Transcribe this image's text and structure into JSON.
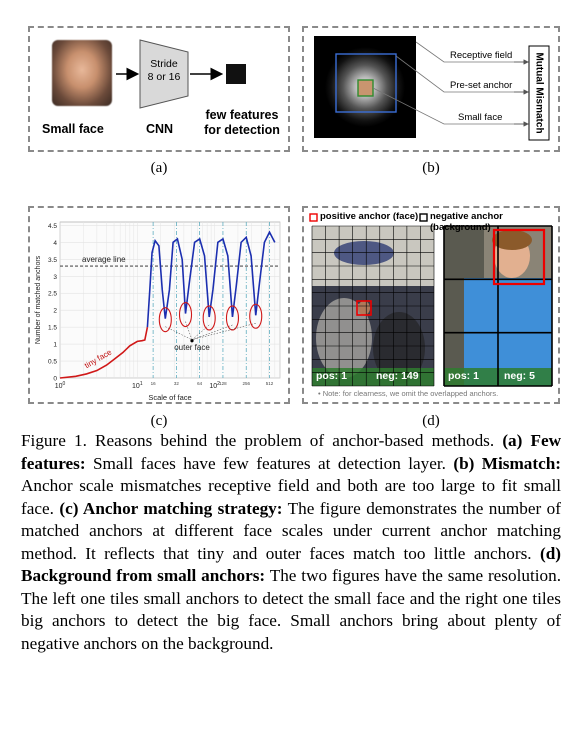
{
  "panel_a": {
    "small_face_label": "Small face",
    "stride_line1": "Stride",
    "stride_line2": "8 or 16",
    "cnn_label": "CNN",
    "few_features_line1": "few features",
    "few_features_line2": "for detection",
    "sublabel": "(a)"
  },
  "panel_b": {
    "receptive_field": "Receptive field",
    "preset_anchor": "Pre-set anchor",
    "small_face": "Small face",
    "mutual_mismatch": "Mutual Mismatch",
    "sublabel": "(b)"
  },
  "panel_c": {
    "sublabel": "(c)",
    "average_line_label": "average line",
    "tiny_face_label": "tiny face",
    "outer_face_label": "outer face",
    "chart_data": {
      "type": "line",
      "xlabel": "Scale of face",
      "ylabel": "Number of matched anchors",
      "x_scale": "log",
      "xlim": [
        1,
        700
      ],
      "ylim": [
        0,
        4.6
      ],
      "major_x_ticks": [
        "10^0",
        "10^1",
        "10^2"
      ],
      "minor_x_ticks": [
        "16",
        "32",
        "64",
        "128",
        "256",
        "512"
      ],
      "y_ticks": [
        "0",
        "0.5",
        "1",
        "1.5",
        "2",
        "2.5",
        "3",
        "3.5",
        "4",
        "4.5"
      ],
      "average_line": 3.3,
      "grid": true,
      "series": [
        {
          "values_y": [
            0,
            0.05,
            0.12,
            0.22,
            0.38,
            0.55,
            0.75,
            0.95,
            1.08,
            1.1,
            1.12,
            1.5,
            2.6,
            3.7,
            4.05,
            3.9,
            2.6,
            1.75,
            2.6,
            4.0,
            4.1,
            3.5,
            1.9,
            2.8,
            4.0,
            4.1,
            3.6,
            1.8,
            2.6,
            4.0,
            4.1,
            3.6,
            1.8,
            2.7,
            4.0,
            4.15,
            3.6,
            1.85,
            2.8,
            4.0,
            4.3,
            4.0
          ],
          "values_x": [
            1,
            1.6,
            2.2,
            3,
            4,
            5,
            6.5,
            8,
            10,
            11.5,
            12.5,
            13.5,
            14.5,
            15.5,
            17,
            19,
            21,
            23,
            26,
            29,
            33,
            38,
            42,
            47,
            55,
            64,
            74,
            85,
            95,
            110,
            128,
            148,
            170,
            190,
            220,
            256,
            296,
            340,
            380,
            440,
            512,
            600
          ]
        }
      ],
      "annotations": [
        "average line",
        "tiny face",
        "outer face"
      ]
    }
  },
  "panel_d": {
    "positive_legend": "positive anchor (face)",
    "negative_legend": "negative anchor (background)",
    "left_pos": "pos: 1",
    "left_neg": "neg: 149",
    "right_pos": "pos: 1",
    "right_neg": "neg: 5",
    "note": "Note: for clearness, we omit the overlapped anchors.",
    "sublabel": "(d)"
  },
  "caption": {
    "figure_prefix": "Figure 1.",
    "intro": " Reasons behind the problem of anchor-based methods.",
    "a_head": "(a) Few features:",
    "a_text": " Small faces have few features at detection layer.",
    "b_head": "(b) Mismatch:",
    "b_text": " Anchor scale mismatches receptive field and both are too large to fit small face.",
    "c_head": "(c) Anchor matching strategy:",
    "c_text": " The figure demonstrates the number of matched anchors at different face scales under current anchor matching method. It reflects that tiny and outer faces match too little anchors.",
    "d_head": "(d) Background from small anchors:",
    "d_text": " The two figures have the same resolution. The left one tiles small anchors to detect the small face and the right one tiles big anchors to detect the big face. Small anchors bring about plenty of negative anchors on the background."
  }
}
